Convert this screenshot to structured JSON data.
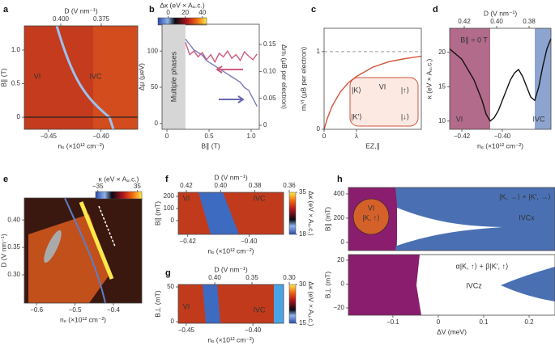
{
  "chart_data": [
    {
      "type": "heatmap",
      "label": "a",
      "xlabel": "nₑ (×10¹² cm⁻²)",
      "ylabel": "B∥ (T)",
      "x2label": "D (V nm⁻¹)",
      "xlim": [
        -0.473,
        -0.365
      ],
      "xticks": [
        {
          "value": -0.45,
          "label": "−0.45"
        },
        {
          "value": -0.4,
          "label": "−0.40"
        }
      ],
      "ylim": [
        -0.18,
        1.36
      ],
      "yticks": [
        0,
        0.5,
        {
          "value": 1,
          "label": "1.0"
        }
      ],
      "x2lim": [
        0.4225,
        0.3525
      ],
      "x2ticks": [
        {
          "value": 0.4,
          "label": "0.400"
        },
        0.375
      ],
      "colorbar": {
        "label": "Δκ (eV × Aᵤ.c.)",
        "lim": [
          -12,
          45
        ],
        "ticks": [
          0,
          20,
          40
        ],
        "orient": "horizontal"
      },
      "annotations": [
        "VI",
        "IVC"
      ]
    },
    {
      "type": "line",
      "label": "b",
      "xlabel": "B∥ (T)",
      "ylabel": "Δμ (μeV)",
      "y2label": "Δmᵢ (μB per electron)",
      "xlim": [
        -0.058,
        1.096
      ],
      "xticks": [
        0,
        0.5,
        {
          "value": 1,
          "label": "1.0"
        }
      ],
      "ylim": [
        -8,
        137
      ],
      "yticks": [
        0,
        50,
        100
      ],
      "y2lim": [
        -0.0075,
        0.1875
      ],
      "y2ticks": [
        0,
        0.05,
        {
          "value": 0.1,
          "label": "0.10"
        },
        0.15
      ],
      "shade": [
        -0.058,
        0.22
      ],
      "annotations": [
        "Multiple phases"
      ],
      "x": [
        0.22,
        0.27,
        0.32,
        0.37,
        0.42,
        0.47,
        0.52,
        0.57,
        0.62,
        0.67,
        0.72,
        0.77,
        0.82,
        0.87,
        0.92,
        0.97,
        1.02,
        1.07
      ],
      "series": [
        {
          "color": "#cf5b7c",
          "values": [
            112,
            95,
            100,
            92,
            98,
            88,
            95,
            85,
            97,
            92,
            100,
            90,
            95,
            87,
            99,
            93,
            88,
            96
          ]
        },
        {
          "color": "#7b79b8",
          "axis": "y2",
          "values": [
            0.16,
            0.15,
            0.14,
            0.135,
            0.13,
            0.12,
            0.115,
            0.11,
            0.105,
            0.1,
            0.095,
            0.09,
            0.085,
            0.08,
            0.07,
            0.065,
            0.05,
            0.035
          ]
        }
      ]
    },
    {
      "type": "line",
      "label": "c",
      "xlabel": "EZ,∥",
      "ylabel": "mᵢⱽᴵ (μB per electron)",
      "xlim": [
        0,
        3
      ],
      "xticks": [
        0,
        {
          "value": 1,
          "label": "λ"
        }
      ],
      "ylim": [
        0,
        1.3
      ],
      "yticks": [
        0,
        1
      ],
      "hline": 1,
      "x": [
        0,
        0.1,
        0.25,
        0.5,
        0.75,
        1,
        1.5,
        2,
        2.5,
        3
      ],
      "series": [
        {
          "color": "#d2553a",
          "values": [
            0,
            0.14,
            0.3,
            0.48,
            0.6,
            0.68,
            0.8,
            0.87,
            0.91,
            0.94
          ]
        }
      ],
      "annotations": [
        "VI",
        "|K⟩",
        "|K′⟩",
        "|↑⟩",
        "|↓⟩"
      ]
    },
    {
      "type": "line",
      "label": "d",
      "xlabel": "nₑ (×10¹² cm⁻²)",
      "ylabel": "κ (eV × Aᵤ.c.)",
      "x2label": "D (V nm⁻¹)",
      "xlim": [
        -0.426,
        -0.376
      ],
      "xticks": [
        {
          "value": -0.42,
          "label": "−0.42"
        },
        {
          "value": -0.4,
          "label": "−0.40"
        }
      ],
      "ylim": [
        8.8,
        23.5
      ],
      "yticks": [
        10,
        15,
        20
      ],
      "x2lim": [
        0.429,
        0.3665
      ],
      "x2ticks": [
        0.42,
        {
          "value": 0.4,
          "label": "0.40"
        },
        0.38
      ],
      "regions": [
        {
          "range": [
            -0.426,
            -0.406
          ],
          "color": "#b26b8a"
        },
        {
          "range": [
            -0.384,
            -0.376
          ],
          "color": "#8ea4d0"
        }
      ],
      "x": [
        -0.426,
        -0.424,
        -0.422,
        -0.42,
        -0.418,
        -0.416,
        -0.414,
        -0.412,
        -0.41,
        -0.408,
        -0.406,
        -0.404,
        -0.402,
        -0.4,
        -0.398,
        -0.396,
        -0.394,
        -0.392,
        -0.39,
        -0.388,
        -0.386,
        -0.384,
        -0.382,
        -0.38,
        -0.378,
        -0.376
      ],
      "series": [
        {
          "color": "#111111",
          "values": [
            20.5,
            20,
            19.5,
            19,
            18,
            17,
            16,
            14.5,
            13,
            11,
            10,
            10.5,
            11.5,
            13,
            14.5,
            16,
            17,
            17.5,
            16.5,
            15,
            13.5,
            13,
            15,
            18,
            20.5,
            22
          ]
        }
      ],
      "annotations": [
        "B∥ = 0 T",
        "VI",
        "IVC"
      ]
    },
    {
      "type": "heatmap",
      "label": "e",
      "xlabel": "nₑ (×10¹² cm⁻²)",
      "ylabel": "D (V nm⁻¹)",
      "xlim": [
        -0.632,
        -0.326
      ],
      "xticks": [
        {
          "value": -0.6,
          "label": "−0.6"
        },
        {
          "value": -0.5,
          "label": "−0.5"
        },
        {
          "value": -0.4,
          "label": "−0.4"
        }
      ],
      "ylim": [
        0.2485,
        0.44
      ],
      "yticks": [
        {
          "value": 0.3,
          "label": "0.30"
        },
        0.35,
        {
          "value": 0.4,
          "label": "0.40"
        }
      ],
      "colorbar": {
        "label": "κ (eV × Aᵤ.c.)",
        "lim": [
          -39,
          43
        ],
        "ticks": [
          {
            "value": -35,
            "label": "−35"
          },
          35
        ],
        "orient": "horizontal"
      }
    },
    {
      "type": "heatmap",
      "label": "f",
      "xlabel": "nₑ (×10¹² cm⁻²)",
      "ylabel": "B∥ (mT)",
      "x2label": "D (V nm⁻¹)",
      "xlim": [
        -0.4231,
        -0.3887
      ],
      "xticks": [
        {
          "value": -0.42,
          "label": "−0.42"
        },
        {
          "value": -0.4,
          "label": "−0.40"
        }
      ],
      "ylim": [
        -113,
        233
      ],
      "yticks": [
        0,
        100,
        200
      ],
      "x2lim": [
        0.4247,
        0.3633
      ],
      "x2ticks": [
        0.42,
        {
          "value": 0.4,
          "label": "0.40"
        },
        0.38,
        0.36
      ],
      "colorbar": {
        "label": "Δκ (eV × Aᵤ.c.)",
        "lim": [
          18,
          35
        ],
        "ticks": [
          35,
          18
        ],
        "orient": "vertical"
      },
      "annotations": [
        "VI",
        "IVC"
      ]
    },
    {
      "type": "heatmap",
      "label": "g",
      "xlabel": "nₑ (×10¹² cm⁻²)",
      "ylabel": "B⊥ (mT)",
      "x2label": "D (V nm⁻¹)",
      "xlim": [
        -0.456,
        -0.377
      ],
      "xticks": [
        {
          "value": -0.45,
          "label": "−0.45"
        },
        {
          "value": -0.4,
          "label": "−0.40"
        }
      ],
      "ylim": [
        -2.3,
        53.5
      ],
      "yticks": [
        0,
        50
      ],
      "x2lim": [
        0.449,
        0.3076
      ],
      "x2ticks": [
        {
          "value": 0.4,
          "label": "0.40"
        },
        0.35,
        {
          "value": 0.3,
          "label": "0.30"
        }
      ],
      "colorbar": {
        "label": "Δκ (eV × Aᵤ.c.)",
        "lim": [
          15,
          30
        ],
        "ticks": [
          30,
          15
        ],
        "orient": "vertical"
      },
      "annotations": [
        "VI",
        "IVC"
      ]
    },
    {
      "type": "phase",
      "label": "h",
      "ylabel": "B∥ (mT)",
      "xlim": [
        -0.198,
        0.257
      ],
      "ylim": [
        -67,
        453
      ],
      "yticks": [
        0,
        200,
        400
      ],
      "annotations": [
        "VI",
        "|K, ↑⟩",
        "|K, →⟩ + |K′, →⟩",
        "IVCx"
      ]
    },
    {
      "type": "phase",
      "xlabel": "ΔV (meV)",
      "ylabel": "B⊥ (mT)",
      "xlim": [
        -0.198,
        0.257
      ],
      "xticks": [
        {
          "value": -0.1,
          "label": "−0.1"
        },
        0,
        0.1,
        0.2
      ],
      "ylim": [
        -26.1,
        24.7
      ],
      "yticks": [
        {
          "value": -20,
          "label": "−20"
        },
        0,
        20
      ],
      "annotations": [
        "α|K, ↑⟩ + β|K′, ↑⟩",
        "IVCz"
      ]
    }
  ]
}
